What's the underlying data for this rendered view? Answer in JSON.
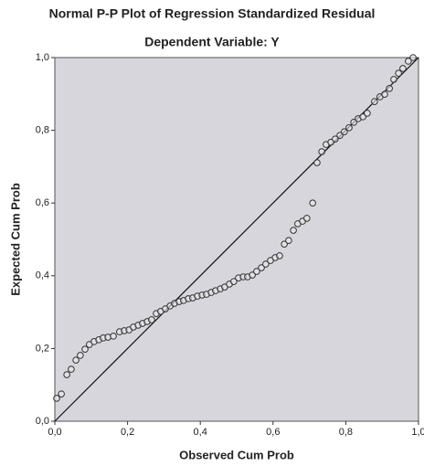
{
  "chart_data": {
    "type": "scatter",
    "title": "Normal P-P Plot of Regression Standardized Residual",
    "subtitle": "Dependent Variable: Y",
    "x_label": "Observed Cum Prob",
    "y_label": "Expected Cum Prob",
    "xlim": [
      0,
      1
    ],
    "ylim": [
      0,
      1
    ],
    "xticks": [
      {
        "value": 0,
        "label": "0,0"
      },
      {
        "value": 0.2,
        "label": "0,2"
      },
      {
        "value": 0.4,
        "label": "0,4"
      },
      {
        "value": 0.6,
        "label": "0,6"
      },
      {
        "value": 0.8,
        "label": "0,8"
      },
      {
        "value": 1,
        "label": "1,0"
      }
    ],
    "yticks": [
      {
        "value": 0,
        "label": "0,0"
      },
      {
        "value": 0.2,
        "label": "0,2"
      },
      {
        "value": 0.4,
        "label": "0,4"
      },
      {
        "value": 0.6,
        "label": "0,6"
      },
      {
        "value": 0.8,
        "label": "0,8"
      },
      {
        "value": 1,
        "label": "1,0"
      }
    ],
    "color": "#333333",
    "x": [
      0.005,
      0.018,
      0.033,
      0.045,
      0.058,
      0.07,
      0.083,
      0.095,
      0.108,
      0.121,
      0.133,
      0.146,
      0.161,
      0.178,
      0.191,
      0.204,
      0.216,
      0.229,
      0.241,
      0.254,
      0.266,
      0.279,
      0.291,
      0.304,
      0.317,
      0.329,
      0.342,
      0.354,
      0.367,
      0.379,
      0.392,
      0.405,
      0.417,
      0.43,
      0.442,
      0.455,
      0.467,
      0.48,
      0.492,
      0.505,
      0.518,
      0.53,
      0.543,
      0.555,
      0.568,
      0.58,
      0.593,
      0.606,
      0.618,
      0.631,
      0.643,
      0.656,
      0.668,
      0.681,
      0.693,
      0.709,
      0.721,
      0.734,
      0.746,
      0.759,
      0.771,
      0.784,
      0.796,
      0.809,
      0.822,
      0.834,
      0.847,
      0.859,
      0.879,
      0.894,
      0.907,
      0.92,
      0.932,
      0.945,
      0.957,
      0.972,
      0.985
    ],
    "values": [
      0.063,
      0.075,
      0.128,
      0.143,
      0.168,
      0.181,
      0.198,
      0.211,
      0.219,
      0.224,
      0.229,
      0.231,
      0.234,
      0.246,
      0.249,
      0.251,
      0.259,
      0.264,
      0.269,
      0.274,
      0.279,
      0.296,
      0.302,
      0.309,
      0.317,
      0.324,
      0.329,
      0.332,
      0.337,
      0.339,
      0.344,
      0.347,
      0.349,
      0.354,
      0.359,
      0.364,
      0.369,
      0.377,
      0.384,
      0.394,
      0.397,
      0.397,
      0.402,
      0.412,
      0.422,
      0.432,
      0.442,
      0.45,
      0.455,
      0.487,
      0.497,
      0.525,
      0.543,
      0.55,
      0.558,
      0.6,
      0.711,
      0.741,
      0.761,
      0.767,
      0.776,
      0.786,
      0.796,
      0.807,
      0.822,
      0.832,
      0.837,
      0.847,
      0.879,
      0.892,
      0.899,
      0.915,
      0.94,
      0.957,
      0.97,
      0.99,
      1.0
    ]
  }
}
